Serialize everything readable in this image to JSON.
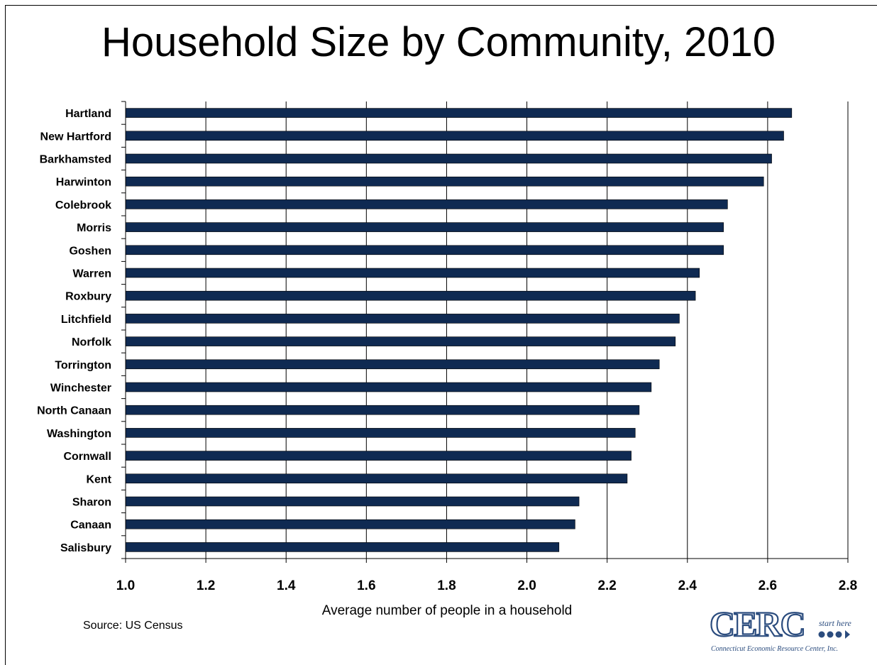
{
  "title": "Household Size by Community, 2010",
  "source": "Source:  US Census",
  "logo": {
    "text": "CERC",
    "tagline": "start here",
    "caption": "Connecticut Economic Resource Center, Inc.",
    "color": "#2b4c7e"
  },
  "chart_data": {
    "type": "bar",
    "orientation": "horizontal",
    "title": "Household Size by Community, 2010",
    "xlabel": "Average number of people in a household",
    "xlim": [
      1.0,
      2.8
    ],
    "xticks": [
      "1.0",
      "1.2",
      "1.4",
      "1.6",
      "1.8",
      "2.0",
      "2.2",
      "2.4",
      "2.6",
      "2.8"
    ],
    "grid": true,
    "bar_color": "#0f2a52",
    "categories": [
      "Hartland",
      "New Hartford",
      "Barkhamsted",
      "Harwinton",
      "Colebrook",
      "Morris",
      "Goshen",
      "Warren",
      "Roxbury",
      "Litchfield",
      "Norfolk",
      "Torrington",
      "Winchester",
      "North Canaan",
      "Washington",
      "Cornwall",
      "Kent",
      "Sharon",
      "Canaan",
      "Salisbury"
    ],
    "values": [
      2.66,
      2.64,
      2.61,
      2.59,
      2.5,
      2.49,
      2.49,
      2.43,
      2.42,
      2.38,
      2.37,
      2.33,
      2.31,
      2.28,
      2.27,
      2.26,
      2.25,
      2.13,
      2.12,
      2.08
    ]
  }
}
